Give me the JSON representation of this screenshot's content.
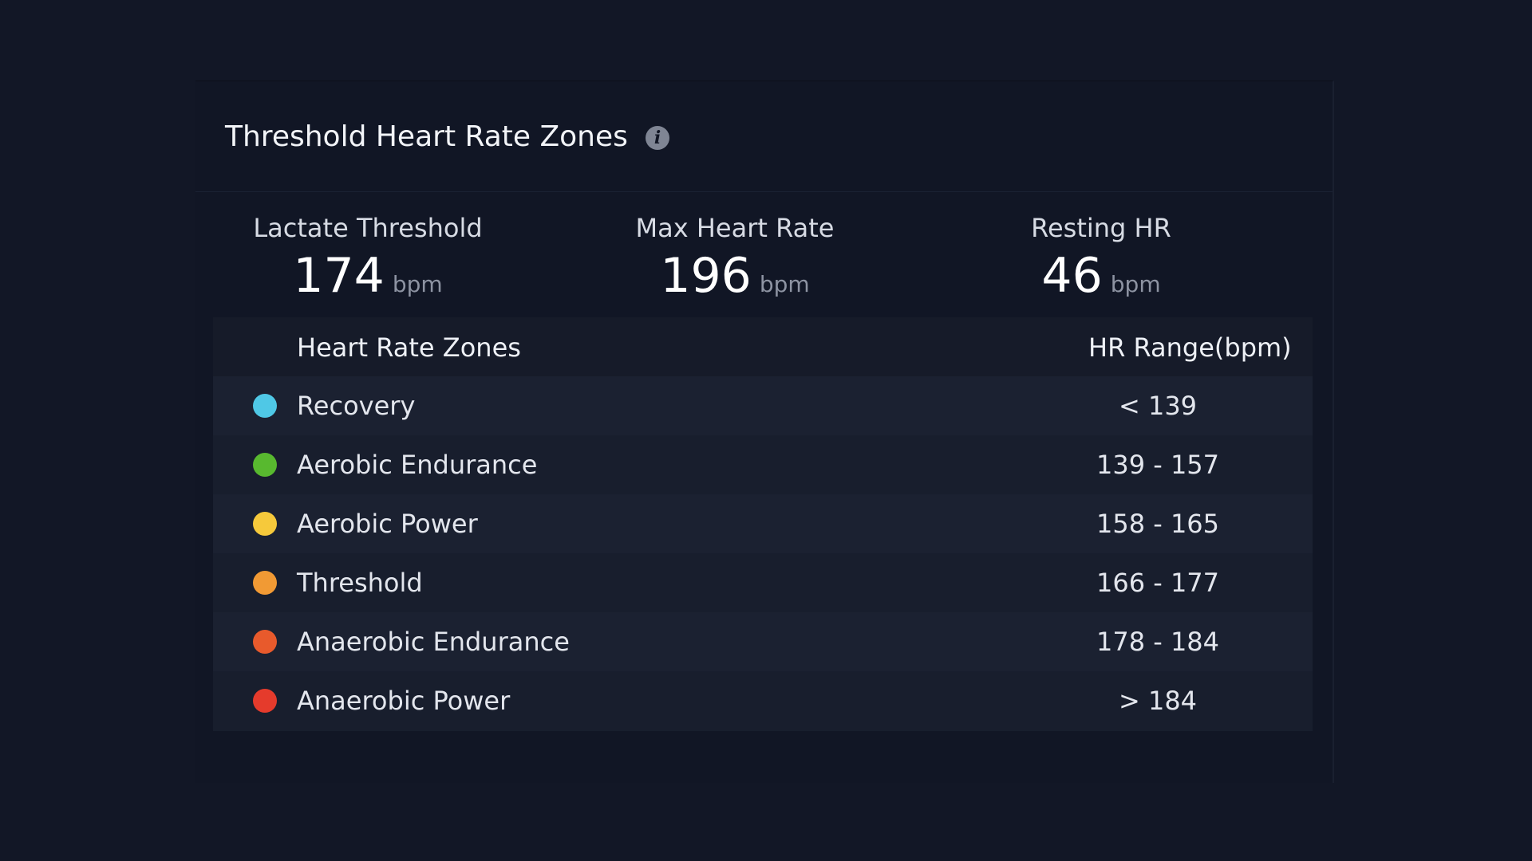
{
  "card": {
    "title": "Threshold Heart Rate Zones",
    "info_icon": "info-icon"
  },
  "stats": [
    {
      "label": "Lactate Threshold",
      "value": "174",
      "unit": "bpm"
    },
    {
      "label": "Max Heart Rate",
      "value": "196",
      "unit": "bpm"
    },
    {
      "label": "Resting HR",
      "value": "46",
      "unit": "bpm"
    }
  ],
  "table": {
    "headers": {
      "zones": "Heart Rate Zones",
      "range": "HR Range(bpm)"
    },
    "rows": [
      {
        "name": "Recovery",
        "range": "< 139",
        "color": "#4fc8e6"
      },
      {
        "name": "Aerobic Endurance",
        "range": "139 - 157",
        "color": "#58b92f"
      },
      {
        "name": "Aerobic Power",
        "range": "158 - 165",
        "color": "#f6c93b"
      },
      {
        "name": "Threshold",
        "range": "166 - 177",
        "color": "#f19a34"
      },
      {
        "name": "Anaerobic Endurance",
        "range": "178 - 184",
        "color": "#e85a2c"
      },
      {
        "name": "Anaerobic Power",
        "range": "> 184",
        "color": "#e53b2c"
      }
    ]
  },
  "colors": {
    "background": "#121726",
    "card": "#111625",
    "table": "#181e2d"
  }
}
